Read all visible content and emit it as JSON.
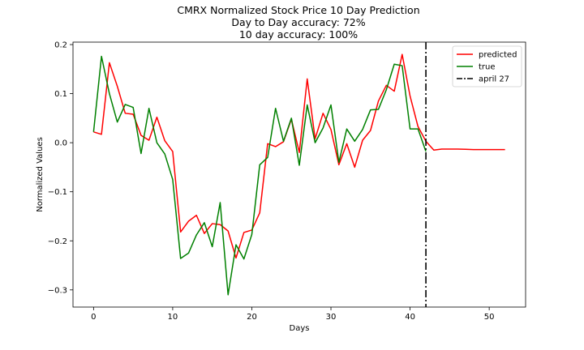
{
  "chart_data": {
    "type": "line",
    "title_lines": [
      "CMRX Normalized Stock Price 10 Day Prediction",
      "Day to Day accuracy: 72%",
      "10 day accuracy: 100%"
    ],
    "xlabel": "Days",
    "ylabel": "Normalized Values",
    "xlim": [
      -2.6,
      54.6
    ],
    "ylim": [
      -0.335,
      0.205
    ],
    "xticks": [
      0,
      10,
      20,
      30,
      40,
      50
    ],
    "yticks": [
      -0.3,
      -0.2,
      -0.1,
      0.0,
      0.1,
      0.2
    ],
    "xtick_labels": [
      "0",
      "10",
      "20",
      "30",
      "40",
      "50"
    ],
    "ytick_labels": [
      "−0.3",
      "−0.2",
      "−0.1",
      "0.0",
      "0.1",
      "0.2"
    ],
    "grid": false,
    "legend_position": "top-right",
    "series": [
      {
        "name": "predicted",
        "color": "#ff0000",
        "x": [
          0,
          1,
          2,
          3,
          4,
          5,
          6,
          7,
          8,
          9,
          10,
          11,
          12,
          13,
          14,
          15,
          16,
          17,
          18,
          19,
          20,
          21,
          22,
          23,
          24,
          25,
          26,
          27,
          28,
          29,
          30,
          31,
          32,
          33,
          34,
          35,
          36,
          37,
          38,
          39,
          40,
          41,
          42,
          43,
          44,
          45,
          46,
          47,
          48,
          49,
          50,
          51,
          52
        ],
        "values": [
          0.022,
          0.017,
          0.163,
          0.115,
          0.06,
          0.058,
          0.015,
          0.005,
          0.052,
          0.004,
          -0.018,
          -0.182,
          -0.16,
          -0.148,
          -0.185,
          -0.165,
          -0.167,
          -0.18,
          -0.235,
          -0.183,
          -0.178,
          -0.143,
          -0.002,
          -0.008,
          0.002,
          0.048,
          -0.02,
          0.13,
          0.008,
          0.06,
          0.027,
          -0.045,
          -0.002,
          -0.05,
          0.005,
          0.025,
          0.085,
          0.117,
          0.105,
          0.18,
          0.095,
          0.033,
          0.003,
          -0.015,
          -0.013,
          -0.013,
          -0.013,
          -0.0135,
          -0.014,
          -0.014,
          -0.014,
          -0.014,
          -0.014
        ]
      },
      {
        "name": "true",
        "color": "#008000",
        "x": [
          0,
          1,
          2,
          3,
          4,
          5,
          6,
          7,
          8,
          9,
          10,
          11,
          12,
          13,
          14,
          15,
          16,
          17,
          18,
          19,
          20,
          21,
          22,
          23,
          24,
          25,
          26,
          27,
          28,
          29,
          30,
          31,
          32,
          33,
          34,
          35,
          36,
          37,
          38,
          39,
          40,
          41,
          42
        ],
        "values": [
          0.022,
          0.176,
          0.1,
          0.042,
          0.078,
          0.072,
          -0.022,
          0.07,
          0.0,
          -0.023,
          -0.075,
          -0.236,
          -0.225,
          -0.188,
          -0.163,
          -0.212,
          -0.122,
          -0.31,
          -0.208,
          -0.237,
          -0.187,
          -0.045,
          -0.03,
          0.07,
          0.003,
          0.05,
          -0.046,
          0.077,
          0.0,
          0.03,
          0.077,
          -0.04,
          0.028,
          0.003,
          0.027,
          0.067,
          0.068,
          0.108,
          0.16,
          0.157,
          0.028,
          0.028,
          -0.018
        ]
      }
    ],
    "annotations": [
      {
        "type": "vline",
        "x": 42,
        "color": "#000000",
        "style": "dashdot",
        "name": "april 27"
      }
    ]
  }
}
